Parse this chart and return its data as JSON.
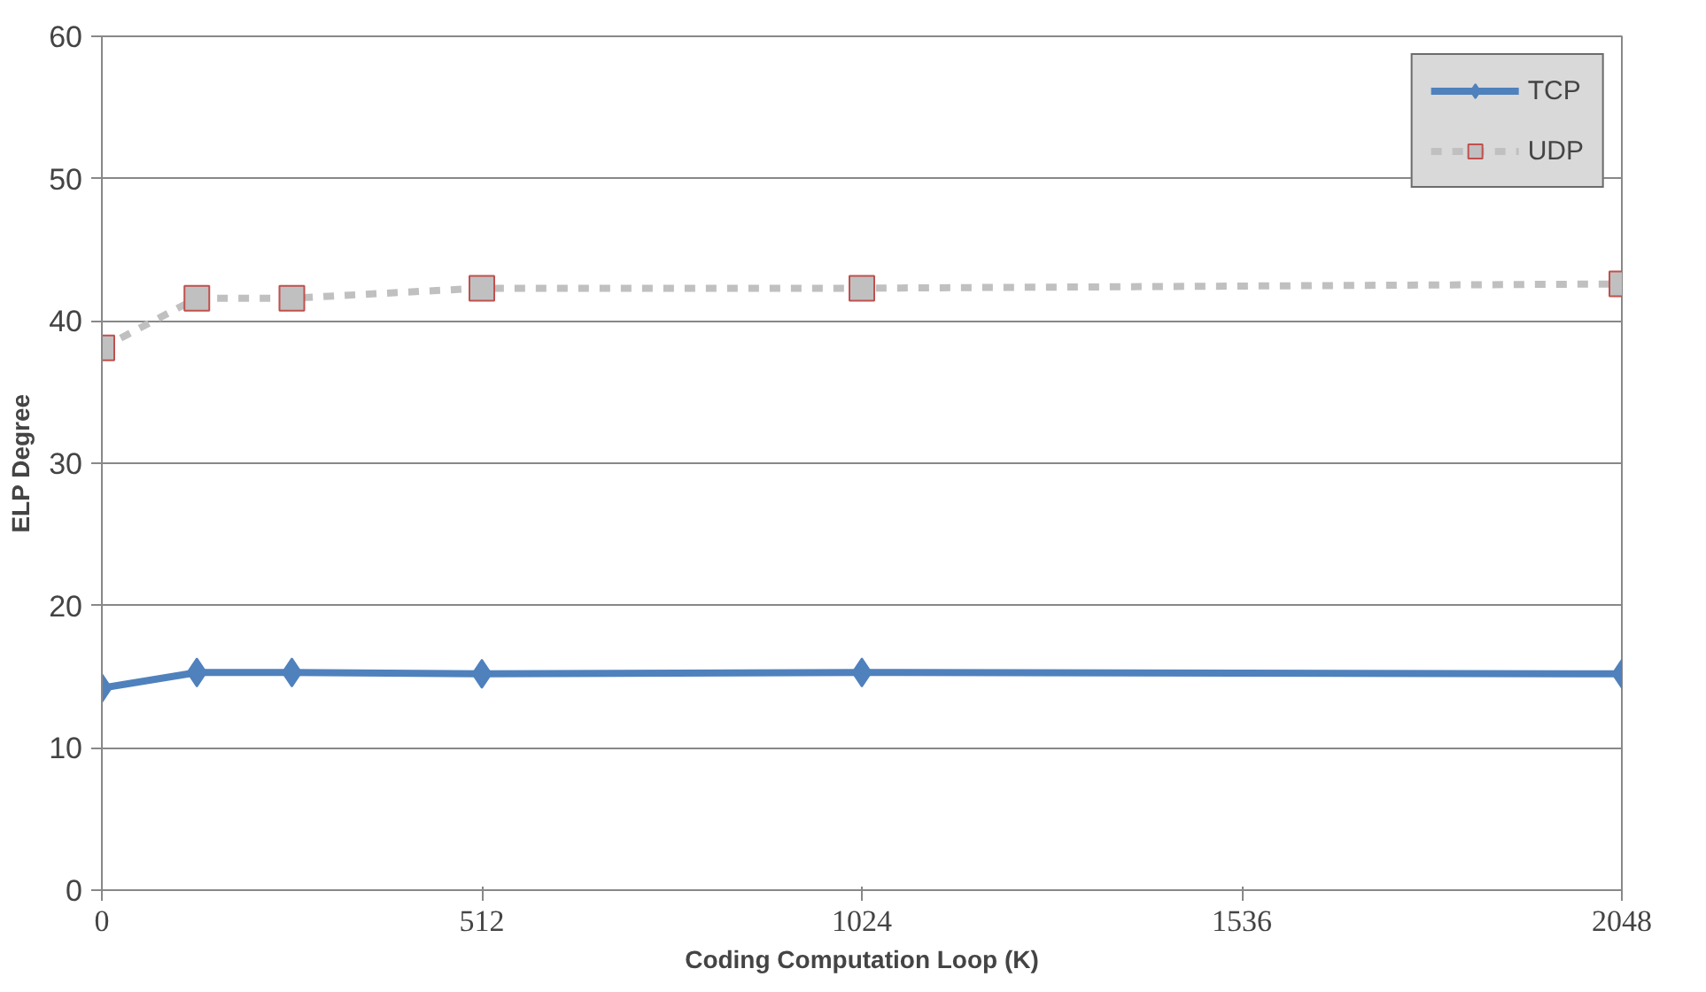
{
  "chart_data": {
    "type": "line",
    "xlabel": "Coding Computation Loop (K)",
    "ylabel": "ELP Degree",
    "x": [
      0,
      128,
      256,
      512,
      1024,
      2048
    ],
    "series": [
      {
        "name": "TCP",
        "color": "#4f81bd",
        "values": [
          14.2,
          15.3,
          15.3,
          15.2,
          15.3,
          15.2
        ],
        "marker": "diamond",
        "line_style": "solid"
      },
      {
        "name": "UDP",
        "color": "#c0c0c0",
        "values": [
          38.1,
          41.6,
          41.6,
          42.3,
          42.3,
          42.6
        ],
        "marker": "square",
        "line_style": "dashed"
      }
    ],
    "xlim": [
      0,
      2048
    ],
    "xticks": [
      0,
      512,
      1024,
      1536,
      2048
    ],
    "ylim": [
      0,
      60
    ],
    "yticks": [
      0,
      10,
      20,
      30,
      40,
      50,
      60
    ],
    "grid": "y",
    "legend": "top right"
  }
}
